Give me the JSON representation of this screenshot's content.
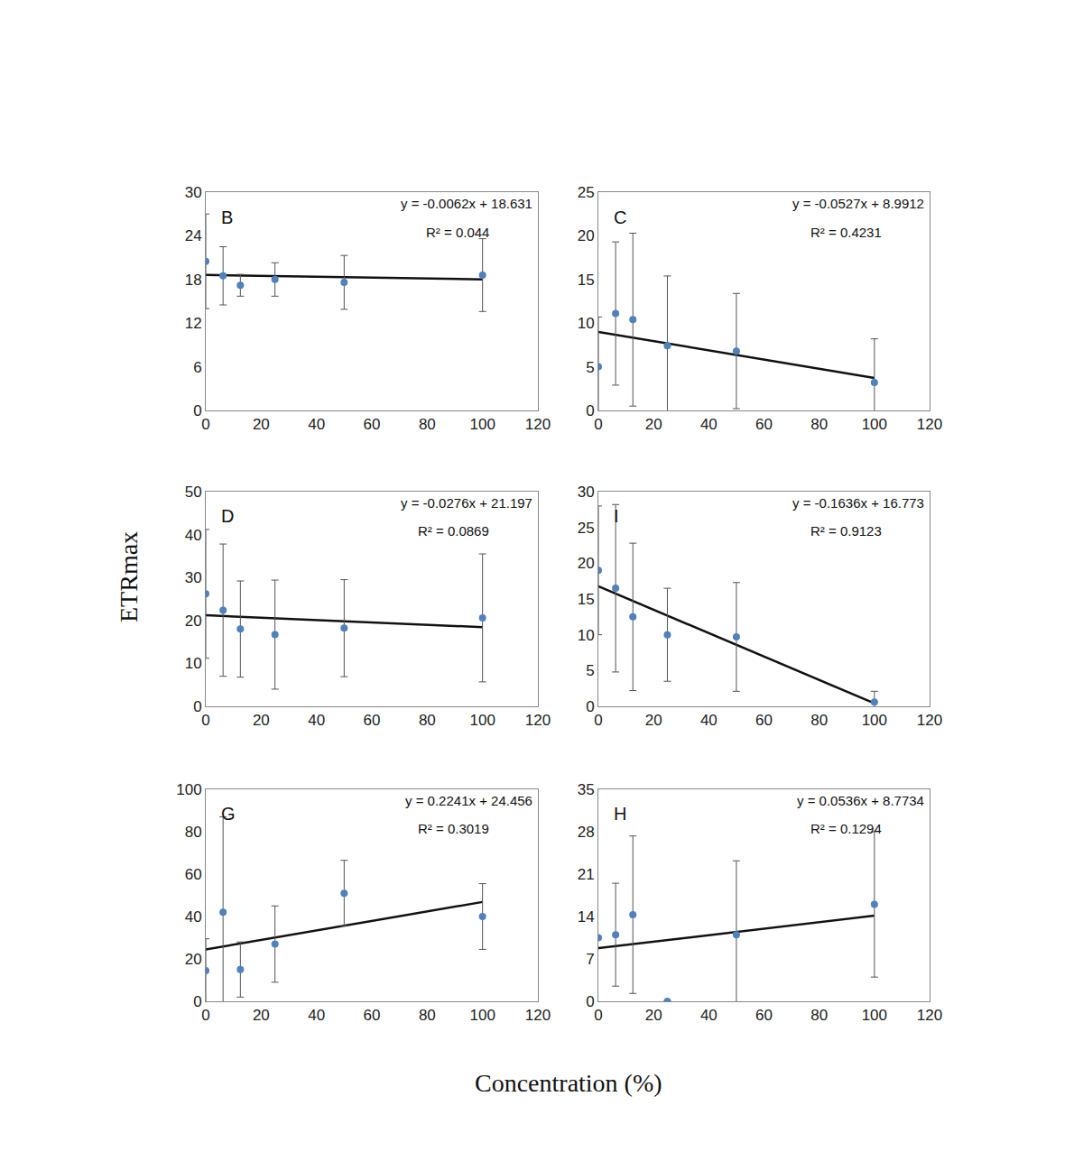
{
  "xlabel": "Concentration (%)",
  "ylabel": "ETRmax",
  "chart_data": [
    {
      "type": "scatter",
      "label": "B",
      "x": [
        0,
        6.25,
        12.5,
        25,
        50,
        100
      ],
      "values": [
        20.5,
        18.5,
        17.2,
        18,
        17.6,
        18.6
      ],
      "errors": [
        6.5,
        4,
        1.5,
        2.3,
        3.7,
        5
      ],
      "equation": "y = -0.0062x + 18.631",
      "r2": "R² = 0.044",
      "trendline": {
        "slope": -0.0062,
        "intercept": 18.631,
        "x": [
          0,
          100
        ]
      },
      "color": "#4f81bd",
      "xlim": [
        0,
        120
      ],
      "xticks": [
        0,
        20,
        40,
        60,
        80,
        100,
        120
      ],
      "ylim": [
        0,
        30
      ],
      "yticks": [
        0,
        6,
        12,
        18,
        24,
        30
      ]
    },
    {
      "type": "scatter",
      "label": "C",
      "x": [
        0,
        6.25,
        12.5,
        25,
        50,
        100
      ],
      "values": [
        5,
        11.1,
        10.4,
        7.4,
        6.8,
        3.2
      ],
      "errors": [
        5.7,
        8.2,
        9.9,
        8,
        6.6,
        5
      ],
      "equation": "y = -0.0527x + 8.9912",
      "r2": "R² = 0.4231",
      "trendline": {
        "slope": -0.0527,
        "intercept": 8.9912,
        "x": [
          0,
          100
        ]
      },
      "color": "#4f81bd",
      "xlim": [
        0,
        120
      ],
      "xticks": [
        0,
        20,
        40,
        60,
        80,
        100,
        120
      ],
      "ylim": [
        0,
        25
      ],
      "yticks": [
        0,
        5,
        10,
        15,
        20,
        25
      ]
    },
    {
      "type": "scatter",
      "label": "D",
      "x": [
        0,
        6.25,
        12.5,
        25,
        50,
        100
      ],
      "values": [
        26.2,
        22.4,
        18,
        16.7,
        18.2,
        20.6
      ],
      "errors": [
        15,
        15.4,
        11.2,
        12.7,
        11.3,
        14.9
      ],
      "equation": "y = -0.0276x + 21.197",
      "r2": "R² = 0.0869",
      "trendline": {
        "slope": -0.0276,
        "intercept": 21.197,
        "x": [
          0,
          100
        ]
      },
      "color": "#4f81bd",
      "xlim": [
        0,
        120
      ],
      "xticks": [
        0,
        20,
        40,
        60,
        80,
        100,
        120
      ],
      "ylim": [
        0,
        50
      ],
      "yticks": [
        0,
        10,
        20,
        30,
        40,
        50
      ]
    },
    {
      "type": "scatter",
      "label": "I",
      "x": [
        0,
        6.25,
        12.5,
        25,
        50,
        100
      ],
      "values": [
        19,
        16.5,
        12.5,
        10,
        9.7,
        0.6
      ],
      "errors": [
        9,
        11.7,
        10.3,
        6.5,
        7.6,
        1.5
      ],
      "equation": "y = -0.1636x + 16.773",
      "r2": "R² = 0.9123",
      "trendline": {
        "slope": -0.1636,
        "intercept": 16.773,
        "x": [
          0,
          100
        ]
      },
      "color": "#4f81bd",
      "xlim": [
        0,
        120
      ],
      "xticks": [
        0,
        20,
        40,
        60,
        80,
        100,
        120
      ],
      "ylim": [
        0,
        30
      ],
      "yticks": [
        0,
        5,
        10,
        15,
        20,
        25,
        30
      ]
    },
    {
      "type": "scatter",
      "label": "G",
      "x": [
        0,
        6.25,
        12.5,
        25,
        50,
        100
      ],
      "values": [
        14.5,
        42,
        15,
        27,
        51,
        40
      ],
      "errors": [
        15,
        45,
        13,
        18,
        15.5,
        15.5
      ],
      "equation": "y = 0.2241x + 24.456",
      "r2": "R² = 0.3019",
      "trendline": {
        "slope": 0.2241,
        "intercept": 24.456,
        "x": [
          0,
          100
        ]
      },
      "color": "#4f81bd",
      "xlim": [
        0,
        120
      ],
      "xticks": [
        0,
        20,
        40,
        60,
        80,
        100,
        120
      ],
      "ylim": [
        0,
        100
      ],
      "yticks": [
        0,
        20,
        40,
        60,
        80,
        100
      ]
    },
    {
      "type": "scatter",
      "label": "H",
      "x": [
        0,
        6.25,
        12.5,
        25,
        50,
        100
      ],
      "values": [
        10.5,
        11,
        14.3,
        0,
        11,
        16
      ],
      "errors": [
        0,
        8.5,
        13,
        0,
        12.2,
        12
      ],
      "equation": "y = 0.0536x + 8.7734",
      "r2": "R² = 0.1294",
      "trendline": {
        "slope": 0.0536,
        "intercept": 8.7734,
        "x": [
          0,
          100
        ]
      },
      "color": "#4f81bd",
      "xlim": [
        0,
        120
      ],
      "xticks": [
        0,
        20,
        40,
        60,
        80,
        100,
        120
      ],
      "ylim": [
        0,
        35
      ],
      "yticks": [
        0,
        7,
        14,
        21,
        28,
        35
      ]
    }
  ]
}
